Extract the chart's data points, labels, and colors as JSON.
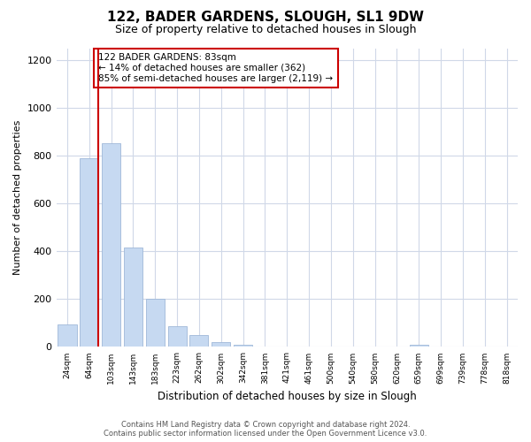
{
  "title": "122, BADER GARDENS, SLOUGH, SL1 9DW",
  "subtitle": "Size of property relative to detached houses in Slough",
  "xlabel": "Distribution of detached houses by size in Slough",
  "ylabel": "Number of detached properties",
  "bar_labels": [
    "24sqm",
    "64sqm",
    "103sqm",
    "143sqm",
    "183sqm",
    "223sqm",
    "262sqm",
    "302sqm",
    "342sqm",
    "381sqm",
    "421sqm",
    "461sqm",
    "500sqm",
    "540sqm",
    "580sqm",
    "620sqm",
    "659sqm",
    "699sqm",
    "739sqm",
    "778sqm",
    "818sqm"
  ],
  "bar_values": [
    93,
    790,
    855,
    415,
    200,
    85,
    50,
    20,
    8,
    2,
    0,
    0,
    0,
    0,
    0,
    0,
    10,
    0,
    0,
    0,
    0
  ],
  "bar_color": "#c6d9f1",
  "bar_edge_color": "#a0b8d8",
  "vline_color": "#cc0000",
  "annotation_text": "122 BADER GARDENS: 83sqm\n← 14% of detached houses are smaller (362)\n85% of semi-detached houses are larger (2,119) →",
  "annotation_box_color": "#ffffff",
  "annotation_box_edge": "#cc0000",
  "ylim": [
    0,
    1250
  ],
  "yticks": [
    0,
    200,
    400,
    600,
    800,
    1000,
    1200
  ],
  "footer_line1": "Contains HM Land Registry data © Crown copyright and database right 2024.",
  "footer_line2": "Contains public sector information licensed under the Open Government Licence v3.0.",
  "background_color": "#ffffff",
  "grid_color": "#d0d8e8"
}
